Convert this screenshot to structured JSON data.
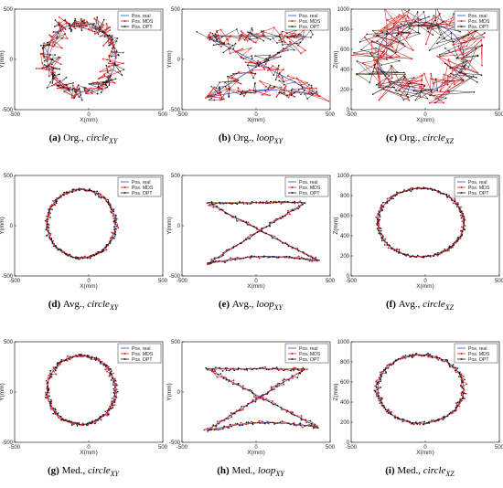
{
  "legend": [
    "Pos. real",
    "Pos. MDS",
    "Pos. OPT"
  ],
  "colors": {
    "real": "#1f4fd1",
    "mds": "#e02020",
    "opt": "#111111"
  },
  "chart_data": [
    {
      "type": "scatter",
      "label": "(a)",
      "prefix": "Org.,",
      "base": "circle",
      "sub": "XY",
      "xlabel": "X(mm)",
      "ylabel": "Y(mm)",
      "xlim": [
        -500,
        500
      ],
      "ylim": [
        -500,
        500
      ],
      "xticks": [
        -500,
        0,
        500
      ],
      "yticks": [
        -500,
        0,
        500
      ],
      "shape": "circle",
      "noise": "org",
      "series": [
        {
          "name": "Pos. real"
        },
        {
          "name": "Pos. MDS"
        },
        {
          "name": "Pos. OPT"
        }
      ]
    },
    {
      "type": "scatter",
      "label": "(b)",
      "prefix": "Org.,",
      "base": "loop",
      "sub": "XY",
      "xlabel": "X(mm)",
      "ylabel": "Y(mm)",
      "xlim": [
        -500,
        500
      ],
      "ylim": [
        -500,
        500
      ],
      "xticks": [
        -500,
        0,
        500
      ],
      "yticks": [
        -500,
        0,
        500
      ],
      "shape": "loop",
      "noise": "org",
      "series": [
        {
          "name": "Pos. real"
        },
        {
          "name": "Pos. MDS"
        },
        {
          "name": "Pos. OPT"
        }
      ]
    },
    {
      "type": "scatter",
      "label": "(c)",
      "prefix": "Org.,",
      "base": "circle",
      "sub": "XZ",
      "xlabel": "X(mm)",
      "ylabel": "Z(mm)",
      "xlim": [
        -500,
        500
      ],
      "ylim": [
        0,
        1000
      ],
      "xticks": [
        -500,
        0,
        500
      ],
      "yticks": [
        0,
        200,
        400,
        600,
        800,
        1000
      ],
      "shape": "circleXZ",
      "noise": "org",
      "series": [
        {
          "name": "Pos. real"
        },
        {
          "name": "Pos. MDS"
        },
        {
          "name": "Pos. OPT"
        }
      ]
    },
    {
      "type": "scatter",
      "label": "(d)",
      "prefix": "Avg.,",
      "base": "circle",
      "sub": "XY",
      "xlabel": "X(mm)",
      "ylabel": "Y(mm)",
      "xlim": [
        -500,
        500
      ],
      "ylim": [
        -500,
        500
      ],
      "xticks": [
        -500,
        0,
        500
      ],
      "yticks": [
        -500,
        0,
        500
      ],
      "shape": "circle",
      "noise": "avg",
      "series": [
        {
          "name": "Pos. real"
        },
        {
          "name": "Pos. MDS"
        },
        {
          "name": "Pos. OPT"
        }
      ]
    },
    {
      "type": "scatter",
      "label": "(e)",
      "prefix": "Avg.,",
      "base": "loop",
      "sub": "XY",
      "xlabel": "X(mm)",
      "ylabel": "Y(mm)",
      "xlim": [
        -500,
        500
      ],
      "ylim": [
        -500,
        500
      ],
      "xticks": [
        -500,
        0,
        500
      ],
      "yticks": [
        -500,
        0,
        500
      ],
      "shape": "loop",
      "noise": "avg",
      "series": [
        {
          "name": "Pos. real"
        },
        {
          "name": "Pos. MDS"
        },
        {
          "name": "Pos. OPT"
        }
      ]
    },
    {
      "type": "scatter",
      "label": "(f)",
      "prefix": "Avg.,",
      "base": "circle",
      "sub": "XZ",
      "xlabel": "X(mm)",
      "ylabel": "Z(mm)",
      "xlim": [
        -500,
        500
      ],
      "ylim": [
        0,
        1000
      ],
      "xticks": [
        -500,
        0,
        500
      ],
      "yticks": [
        0,
        200,
        400,
        600,
        800,
        1000
      ],
      "shape": "circleXZ",
      "noise": "avg",
      "series": [
        {
          "name": "Pos. real"
        },
        {
          "name": "Pos. MDS"
        },
        {
          "name": "Pos. OPT"
        }
      ]
    },
    {
      "type": "scatter",
      "label": "(g)",
      "prefix": "Med.,",
      "base": "circle",
      "sub": "XY",
      "xlabel": "X(mm)",
      "ylabel": "Y(mm)",
      "xlim": [
        -500,
        500
      ],
      "ylim": [
        -500,
        500
      ],
      "xticks": [
        -500,
        0,
        500
      ],
      "yticks": [
        -500,
        0,
        500
      ],
      "shape": "circle",
      "noise": "med",
      "series": [
        {
          "name": "Pos. real"
        },
        {
          "name": "Pos. MDS"
        },
        {
          "name": "Pos. OPT"
        }
      ]
    },
    {
      "type": "scatter",
      "label": "(h)",
      "prefix": "Med.,",
      "base": "loop",
      "sub": "XY",
      "xlabel": "X(mm)",
      "ylabel": "Y(mm)",
      "xlim": [
        -500,
        500
      ],
      "ylim": [
        -500,
        500
      ],
      "xticks": [
        -500,
        0,
        500
      ],
      "yticks": [
        -500,
        0,
        500
      ],
      "shape": "loop",
      "noise": "med",
      "series": [
        {
          "name": "Pos. real"
        },
        {
          "name": "Pos. MDS"
        },
        {
          "name": "Pos. OPT"
        }
      ]
    },
    {
      "type": "scatter",
      "label": "(i)",
      "prefix": "Med.,",
      "base": "circle",
      "sub": "XZ",
      "xlabel": "X(mm)",
      "ylabel": "Z(mm)",
      "xlim": [
        -500,
        500
      ],
      "ylim": [
        0,
        1000
      ],
      "xticks": [
        -500,
        0,
        500
      ],
      "yticks": [
        0,
        200,
        400,
        600,
        800,
        1000
      ],
      "shape": "circleXZ",
      "noise": "med",
      "series": [
        {
          "name": "Pos. real"
        },
        {
          "name": "Pos. MDS"
        },
        {
          "name": "Pos. OPT"
        }
      ]
    }
  ]
}
